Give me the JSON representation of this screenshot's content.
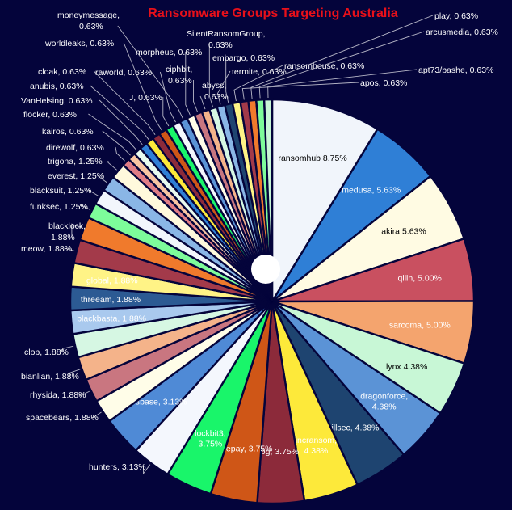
{
  "chart_data": {
    "type": "pie",
    "title": "Ransomware Groups Targeting Australia",
    "slices": [
      {
        "label": "ransomhub",
        "value": 8.75,
        "display": "ransomhub  8.75%",
        "color": "#f1f5fb",
        "text_color": "#000000",
        "placement": "inside"
      },
      {
        "label": "medusa",
        "value": 5.63,
        "display": "medusa, 5.63%",
        "color": "#2f7fd6",
        "text_color": "#ffffff",
        "placement": "inside"
      },
      {
        "label": "akira",
        "value": 5.63,
        "display": "akira  5.63%",
        "color": "#fffbe3",
        "text_color": "#000000",
        "placement": "inside"
      },
      {
        "label": "qilin",
        "value": 5.0,
        "display": "qilin, 5.00%",
        "color": "#c95060",
        "text_color": "#ffffff",
        "placement": "inside"
      },
      {
        "label": "sarcoma",
        "value": 5.0,
        "display": "sarcoma, 5.00%",
        "color": "#f4a46e",
        "text_color": "#ffffff",
        "placement": "inside"
      },
      {
        "label": "lynx",
        "value": 4.38,
        "display": "lynx  4.38%",
        "color": "#c8f7d6",
        "text_color": "#000000",
        "placement": "inside"
      },
      {
        "label": "dragonforce",
        "value": 4.38,
        "display": "dragonforce, 4.38%",
        "color": "#5b93d6",
        "text_color": "#ffffff",
        "placement": "inside"
      },
      {
        "label": "killsec",
        "value": 4.38,
        "display": "killsec, 4.38%",
        "color": "#1e4470",
        "text_color": "#ffffff",
        "placement": "inside"
      },
      {
        "label": "incransom",
        "value": 4.38,
        "display": "incransom, 4.38%",
        "color": "#fde93a",
        "text_color": "#ffffff",
        "placement": "inside"
      },
      {
        "label": "fog",
        "value": 3.75,
        "display": "fog, 3.75%",
        "color": "#8c2a3a",
        "text_color": "#ffffff",
        "placement": "inside"
      },
      {
        "label": "safepay",
        "value": 3.75,
        "display": "safepay, 3.75%",
        "color": "#cf5617",
        "text_color": "#ffffff",
        "placement": "inside"
      },
      {
        "label": "lockbit3",
        "value": 3.75,
        "display": "lockbit3, 3.75%",
        "color": "#19f56a",
        "text_color": "#ffffff",
        "placement": "inside"
      },
      {
        "label": "hunters",
        "value": 3.13,
        "display": "hunters, 3.13%",
        "color": "#f4f7fd",
        "text_color": "#ffffff",
        "placement": "outside"
      },
      {
        "label": "8base",
        "value": 3.13,
        "display": "8base, 3.13%",
        "color": "#4f8ad6",
        "text_color": "#ffffff",
        "placement": "inside"
      },
      {
        "label": "spacebears",
        "value": 1.88,
        "display": "spacebears, 1.88%",
        "color": "#fffde8",
        "text_color": "#ffffff",
        "placement": "outside"
      },
      {
        "label": "rhysida",
        "value": 1.88,
        "display": "rhysida, 1.88%",
        "color": "#c97680",
        "text_color": "#ffffff",
        "placement": "outside"
      },
      {
        "label": "bianlian",
        "value": 1.88,
        "display": "bianlian, 1.88%",
        "color": "#f4b38a",
        "text_color": "#ffffff",
        "placement": "outside"
      },
      {
        "label": "clop",
        "value": 1.88,
        "display": "clop, 1.88%",
        "color": "#d6f7e3",
        "text_color": "#ffffff",
        "placement": "outside"
      },
      {
        "label": "blackbasta",
        "value": 1.88,
        "display": "blackbasta, 1.88%",
        "color": "#a9c9ee",
        "text_color": "#ffffff",
        "placement": "inside"
      },
      {
        "label": "threeam",
        "value": 1.88,
        "display": "threeam, 1.88%",
        "color": "#2c5a93",
        "text_color": "#ffffff",
        "placement": "inside"
      },
      {
        "label": "global",
        "value": 1.88,
        "display": "global, 1.88%",
        "color": "#fff386",
        "text_color": "#ffffff",
        "placement": "inside"
      },
      {
        "label": "meow",
        "value": 1.88,
        "display": "meow, 1.88%",
        "color": "#a33a4a",
        "text_color": "#ffffff",
        "placement": "outside"
      },
      {
        "label": "blacklock",
        "value": 1.88,
        "display": "blacklock, 1.88%",
        "color": "#f07a2c",
        "text_color": "#ffffff",
        "placement": "outside"
      },
      {
        "label": "funksec",
        "value": 1.25,
        "display": "funksec, 1.25%",
        "color": "#7dfc9a",
        "text_color": "#ffffff",
        "placement": "outside"
      },
      {
        "label": "blacksuit",
        "value": 1.25,
        "display": "blacksuit, 1.25%",
        "color": "#f2f6fc",
        "text_color": "#ffffff",
        "placement": "outside"
      },
      {
        "label": "everest",
        "value": 1.25,
        "display": "everest, 1.25%",
        "color": "#8ab6e6",
        "text_color": "#ffffff",
        "placement": "outside"
      },
      {
        "label": "trigona",
        "value": 1.25,
        "display": "trigona, 1.25%",
        "color": "#fff9dc",
        "text_color": "#ffffff",
        "placement": "outside"
      },
      {
        "label": "direwolf",
        "value": 0.63,
        "display": "direwolf, 0.63%",
        "color": "#e07d86",
        "text_color": "#ffffff",
        "placement": "outside"
      },
      {
        "label": "kairos",
        "value": 0.63,
        "display": "kairos, 0.63%",
        "color": "#f8c4a2",
        "text_color": "#ffffff",
        "placement": "outside"
      },
      {
        "label": "flocker",
        "value": 0.63,
        "display": "flocker, 0.63%",
        "color": "#e9fbef",
        "text_color": "#ffffff",
        "placement": "outside"
      },
      {
        "label": "VanHelsing",
        "value": 0.63,
        "display": "VanHelsing, 0.63%",
        "color": "#2f7fd6",
        "text_color": "#ffffff",
        "placement": "outside"
      },
      {
        "label": "anubis",
        "value": 0.63,
        "display": "anubis, 0.63%",
        "color": "#fde93a",
        "text_color": "#ffffff",
        "placement": "outside"
      },
      {
        "label": "cloak",
        "value": 0.63,
        "display": "cloak, 0.63%",
        "color": "#8c2a3a",
        "text_color": "#ffffff",
        "placement": "outside"
      },
      {
        "label": "worldleaks",
        "value": 0.63,
        "display": "worldleaks, 0.63%",
        "color": "#cf5617",
        "text_color": "#ffffff",
        "placement": "outside"
      },
      {
        "label": "J",
        "value": 0.63,
        "display": "J, 0.63%",
        "color": "#19f56a",
        "text_color": "#ffffff",
        "placement": "outside"
      },
      {
        "label": "raworld",
        "value": 0.63,
        "display": "raworld, 0.63%",
        "color": "#f4f7fd",
        "text_color": "#ffffff",
        "placement": "outside"
      },
      {
        "label": "moneymessage",
        "value": 0.63,
        "display": "moneymessage, 0.63%",
        "color": "#5b93d6",
        "text_color": "#ffffff",
        "placement": "outside"
      },
      {
        "label": "morpheus",
        "value": 0.63,
        "display": "morpheus, 0.63%",
        "color": "#fffde8",
        "text_color": "#ffffff",
        "placement": "outside"
      },
      {
        "label": "ciphbit",
        "value": 0.63,
        "display": "ciphbit, 0.63%",
        "color": "#c97680",
        "text_color": "#ffffff",
        "placement": "outside"
      },
      {
        "label": "abyss",
        "value": 0.63,
        "display": "abyss, 0.63%",
        "color": "#f4b38a",
        "text_color": "#ffffff",
        "placement": "outside"
      },
      {
        "label": "SilentRansomGroup",
        "value": 0.63,
        "display": "SilentRansomGroup, 0.63%",
        "color": "#d6f7e3",
        "text_color": "#ffffff",
        "placement": "outside"
      },
      {
        "label": "termite",
        "value": 0.63,
        "display": "termite, 0.63%",
        "color": "#8ab6e6",
        "text_color": "#ffffff",
        "placement": "outside"
      },
      {
        "label": "embargo",
        "value": 0.63,
        "display": "embargo, 0.63%",
        "color": "#1e4470",
        "text_color": "#ffffff",
        "placement": "outside"
      },
      {
        "label": "ransomhouse",
        "value": 0.63,
        "display": "ransomhouse, 0.63%",
        "color": "#fff386",
        "text_color": "#ffffff",
        "placement": "outside"
      },
      {
        "label": "apos",
        "value": 0.63,
        "display": "apos, 0.63%",
        "color": "#a33a4a",
        "text_color": "#ffffff",
        "placement": "outside"
      },
      {
        "label": "play",
        "value": 0.63,
        "display": "play, 0.63%",
        "color": "#f07a2c",
        "text_color": "#ffffff",
        "placement": "outside"
      },
      {
        "label": "arcusmedia",
        "value": 0.63,
        "display": "arcusmedia, 0.63%",
        "color": "#7dfc9a",
        "text_color": "#ffffff",
        "placement": "outside"
      },
      {
        "label": "apt73/bashe",
        "value": 0.63,
        "display": "apt73/bashe, 0.63%",
        "color": "#c8f7d6",
        "text_color": "#ffffff",
        "placement": "outside"
      }
    ]
  }
}
